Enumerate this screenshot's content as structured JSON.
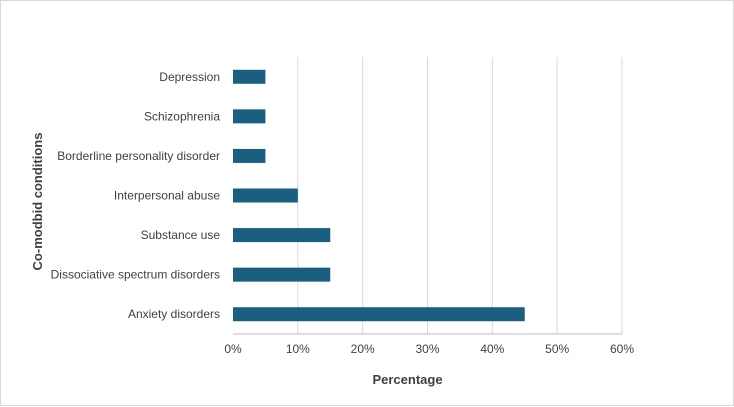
{
  "chart_data": {
    "type": "bar",
    "orientation": "horizontal",
    "categories": [
      "Depression",
      "Schizophrenia",
      "Borderline personality disorder",
      "Interpersonal abuse",
      "Substance use ",
      "Dissociative spectrum disorders",
      "Anxiety disorders"
    ],
    "values": [
      5,
      5,
      5,
      10,
      15,
      15,
      45
    ],
    "xlabel": "Percentage",
    "ylabel": "Co-modbid conditions",
    "xlim": [
      0,
      60
    ],
    "x_ticks": [
      "0%",
      "10%",
      "20%",
      "30%",
      "40%",
      "50%",
      "60%"
    ],
    "grid": "vertical",
    "bar_color": "#1a5f80",
    "legend": "none"
  }
}
